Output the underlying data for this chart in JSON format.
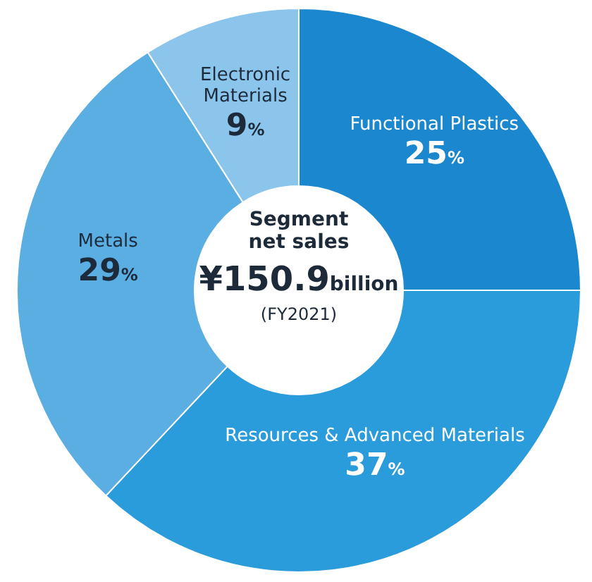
{
  "chart_data": {
    "type": "donut",
    "title": "Segment net sales",
    "annotations": [
      "¥150.9billion",
      "(FY2021)"
    ],
    "categories": [
      "Functional Plastics",
      "Resources & Advanced Materials",
      "Metals",
      "Electronic Materials"
    ],
    "values": [
      25,
      37,
      29,
      9
    ],
    "value_labels": [
      "25%",
      "37%",
      "29%",
      "9%"
    ],
    "colors": [
      "#1a87cf",
      "#2a9bdb",
      "#5aaee2",
      "#8cc5ec"
    ]
  }
}
